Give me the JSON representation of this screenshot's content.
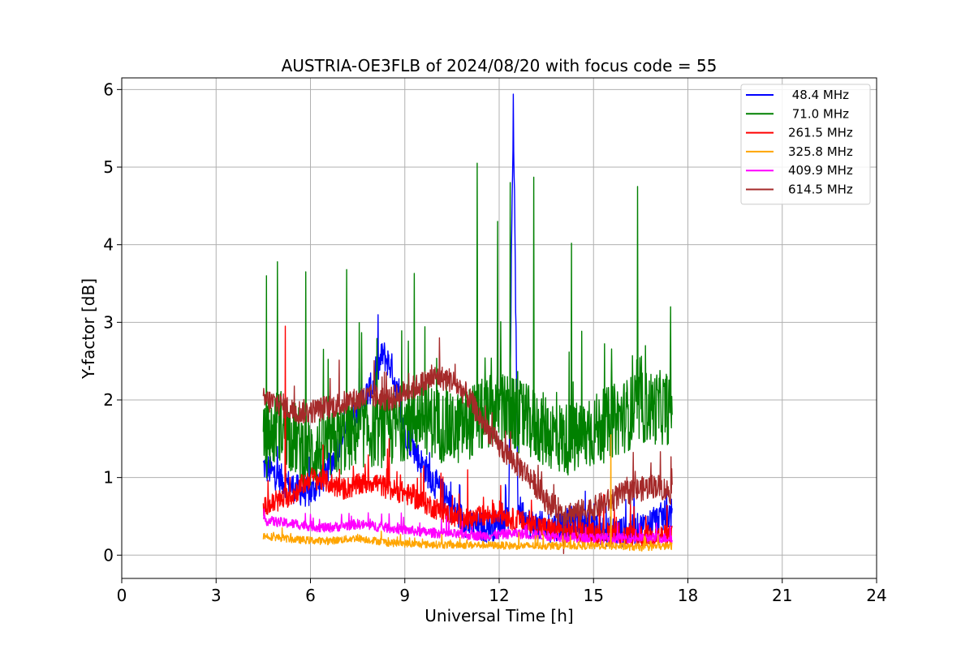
{
  "chart_data": {
    "type": "line",
    "title": "AUSTRIA-OE3FLB of 2024/08/20 with focus code = 55",
    "xlabel": "Universal Time [h]",
    "ylabel": "Y-factor [dB]",
    "xlim": [
      0,
      24
    ],
    "ylim": [
      -0.3,
      6.15
    ],
    "xticks": [
      0,
      3,
      6,
      9,
      12,
      15,
      18,
      21,
      24
    ],
    "yticks": [
      0,
      1,
      2,
      3,
      4,
      5,
      6
    ],
    "grid": true,
    "legend_position": "top-right",
    "series": [
      {
        "name": " 48.4 MHz",
        "color": "#0000ff",
        "x": [
          4.5,
          5.0,
          5.5,
          6.0,
          6.5,
          7.0,
          7.5,
          8.0,
          8.3,
          8.6,
          9.0,
          9.5,
          10.0,
          10.5,
          11.0,
          11.5,
          12.0,
          12.3,
          12.45,
          12.6,
          13.0,
          13.5,
          14.0,
          14.5,
          15.0,
          15.5,
          16.0,
          16.5,
          17.0,
          17.5
        ],
        "values": [
          1.15,
          1.0,
          0.85,
          0.8,
          1.05,
          1.5,
          1.9,
          2.2,
          2.6,
          2.4,
          1.6,
          1.2,
          0.9,
          0.6,
          0.4,
          0.35,
          0.4,
          0.5,
          5.8,
          0.6,
          0.4,
          0.35,
          0.4,
          0.45,
          0.35,
          0.3,
          0.3,
          0.35,
          0.45,
          0.55
        ],
        "spike_amplitude": 0.25
      },
      {
        "name": " 71.0 MHz",
        "color": "#008000",
        "x": [
          4.5,
          5.0,
          5.5,
          6.0,
          6.5,
          7.0,
          7.5,
          8.0,
          8.5,
          9.0,
          9.5,
          10.0,
          10.5,
          11.0,
          11.5,
          12.0,
          12.5,
          13.0,
          13.5,
          14.0,
          14.5,
          15.0,
          15.5,
          16.0,
          16.5,
          17.0,
          17.5
        ],
        "values": [
          1.4,
          1.7,
          1.5,
          1.3,
          1.4,
          1.5,
          1.6,
          1.6,
          1.6,
          1.7,
          1.8,
          1.7,
          1.6,
          1.7,
          1.8,
          1.9,
          1.8,
          1.7,
          1.6,
          1.5,
          1.5,
          1.6,
          1.7,
          1.8,
          1.9,
          1.9,
          1.9
        ],
        "spike_amplitude": 0.6,
        "peaks": [
          [
            4.6,
            3.6
          ],
          [
            4.95,
            3.78
          ],
          [
            5.85,
            3.65
          ],
          [
            7.15,
            3.68
          ],
          [
            9.3,
            3.63
          ],
          [
            11.3,
            5.05
          ],
          [
            11.95,
            4.3
          ],
          [
            12.35,
            4.8
          ],
          [
            13.1,
            4.87
          ],
          [
            14.3,
            4.02
          ],
          [
            16.4,
            4.75
          ],
          [
            17.45,
            3.2
          ]
        ]
      },
      {
        "name": "261.5 MHz",
        "color": "#ff0000",
        "x": [
          4.5,
          5.0,
          5.5,
          6.0,
          6.5,
          7.0,
          7.5,
          8.0,
          8.5,
          9.0,
          9.5,
          10.0,
          10.5,
          11.0,
          11.5,
          12.0,
          12.5,
          13.0,
          13.5,
          14.0,
          14.5,
          15.0,
          15.5,
          16.0,
          16.5,
          17.0,
          17.5
        ],
        "values": [
          0.6,
          0.7,
          0.8,
          1.0,
          0.95,
          0.85,
          0.9,
          0.95,
          0.85,
          0.8,
          0.7,
          0.6,
          0.5,
          0.45,
          0.5,
          0.55,
          0.45,
          0.4,
          0.35,
          0.3,
          0.3,
          0.28,
          0.28,
          0.25,
          0.25,
          0.25,
          0.25
        ],
        "spike_amplitude": 0.18,
        "peaks": [
          [
            5.2,
            2.95
          ],
          [
            8.5,
            1.5
          ],
          [
            9.6,
            1.15
          ],
          [
            11.0,
            1.1
          ]
        ]
      },
      {
        "name": "325.8 MHz",
        "color": "#ffa500",
        "x": [
          4.5,
          5.5,
          6.5,
          7.5,
          8.5,
          9.5,
          10.5,
          11.5,
          12.5,
          13.5,
          14.5,
          15.5,
          16.5,
          17.5
        ],
        "values": [
          0.25,
          0.2,
          0.18,
          0.22,
          0.16,
          0.14,
          0.13,
          0.13,
          0.12,
          0.12,
          0.12,
          0.12,
          0.1,
          0.12
        ],
        "spike_amplitude": 0.06,
        "peaks": [
          [
            15.55,
            1.55
          ]
        ]
      },
      {
        "name": "409.9 MHz",
        "color": "#ff00ff",
        "x": [
          4.5,
          5.5,
          6.5,
          7.5,
          8.5,
          9.5,
          10.5,
          11.5,
          12.5,
          13.5,
          14.5,
          15.5,
          16.5,
          17.5
        ],
        "values": [
          0.45,
          0.4,
          0.35,
          0.4,
          0.35,
          0.3,
          0.27,
          0.25,
          0.28,
          0.25,
          0.22,
          0.22,
          0.22,
          0.22
        ],
        "spike_amplitude": 0.08
      },
      {
        "name": "614.5 MHz",
        "color": "#a52a2a",
        "x": [
          4.5,
          5.0,
          5.5,
          6.0,
          6.5,
          7.0,
          7.5,
          8.0,
          8.5,
          9.0,
          9.5,
          10.0,
          10.5,
          11.0,
          11.5,
          12.0,
          12.5,
          13.0,
          13.5,
          14.0,
          14.5,
          15.0,
          15.5,
          16.0,
          16.5,
          17.0,
          17.5
        ],
        "values": [
          2.0,
          1.95,
          1.85,
          1.85,
          1.9,
          1.95,
          2.0,
          2.05,
          2.0,
          2.1,
          2.2,
          2.3,
          2.25,
          2.05,
          1.7,
          1.4,
          1.2,
          1.0,
          0.7,
          0.55,
          0.55,
          0.6,
          0.7,
          0.8,
          0.85,
          0.9,
          0.8
        ],
        "spike_amplitude": 0.2,
        "peaks": [
          [
            10.1,
            2.8
          ],
          [
            14.05,
            0.02
          ]
        ]
      }
    ]
  }
}
